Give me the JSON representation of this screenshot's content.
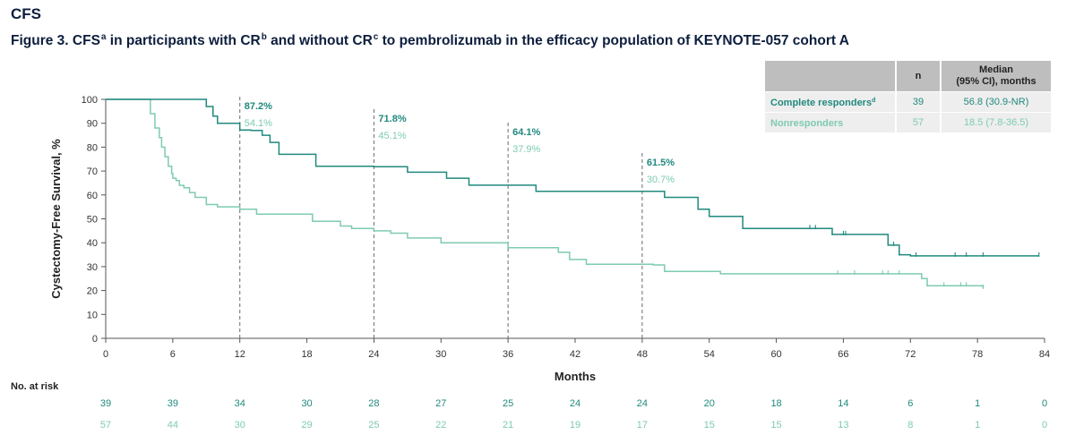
{
  "section_title": "CFS",
  "figure_title": {
    "p1": "Figure 3. CFS",
    "s1": "a",
    "p2": " in participants with CR",
    "s2": "b",
    "p3": " and without CR",
    "s3": "c",
    "p4": " to pembrolizumab in the efficacy population of KEYNOTE-057 cohort A"
  },
  "table": {
    "header_n": "n",
    "header_median_l1": "Median",
    "header_median_l2": "(95% CI), months",
    "rows": [
      {
        "label": "Complete responders",
        "sup": "d",
        "n": "39",
        "median": "56.8 (30.9-NR)",
        "color": "#21897e"
      },
      {
        "label": "Nonresponders",
        "sup": "",
        "n": "57",
        "median": "18.5 (7.8-36.5)",
        "color": "#7ecbb1"
      }
    ]
  },
  "colors": {
    "cr": "#21897e",
    "nr": "#7ecbb1",
    "axis": "#555555",
    "ref": "#777777"
  },
  "chart_data": {
    "type": "line",
    "subtype": "kaplan-meier step",
    "xlabel": "Months",
    "ylabel": "Cystectomy-Free Survival, %",
    "xlim": [
      0,
      84
    ],
    "ylim": [
      0,
      100
    ],
    "xticks": [
      "0",
      "6",
      "12",
      "18",
      "24",
      "30",
      "36",
      "42",
      "48",
      "54",
      "60",
      "66",
      "72",
      "78",
      "84"
    ],
    "yticks": [
      "0",
      "10",
      "20",
      "30",
      "40",
      "50",
      "60",
      "70",
      "80",
      "90",
      "100"
    ],
    "grid": false,
    "series": [
      {
        "name": "Complete responders",
        "color": "#21897e",
        "x": [
          0,
          9,
          9.6,
          10,
          12,
          13,
          14,
          14.7,
          15.5,
          18.8,
          24,
          27,
          30.5,
          32.5,
          38.5,
          50,
          53,
          54,
          57,
          64,
          65,
          66,
          68,
          70,
          71,
          72,
          76,
          83.5
        ],
        "y": [
          100,
          97,
          93,
          90,
          87.2,
          87,
          85,
          82,
          77,
          72,
          71.8,
          69.5,
          67,
          64.1,
          61.5,
          59,
          54,
          51,
          46,
          46,
          43.5,
          43.5,
          43.5,
          39,
          35,
          34.5,
          34.5,
          34.5
        ],
        "censor_x": [
          63,
          63.5,
          65,
          66,
          66.2,
          70.5,
          71,
          72.5,
          76,
          77,
          78.5,
          83.5
        ]
      },
      {
        "name": "Nonresponders",
        "color": "#7ecbb1",
        "x": [
          0,
          4,
          4.4,
          4.8,
          5,
          5.3,
          5.6,
          5.9,
          6,
          6.3,
          6.6,
          7,
          7.5,
          8,
          9,
          10,
          12,
          13.5,
          18.5,
          21,
          22,
          24,
          25.5,
          27,
          30,
          36,
          40.5,
          41.5,
          43,
          49,
          50,
          55,
          56,
          66,
          73,
          73.5,
          78.5
        ],
        "y": [
          100,
          94,
          88,
          84,
          80,
          76,
          72,
          69,
          67,
          66,
          64,
          63,
          61,
          59,
          56,
          55,
          54,
          52,
          49,
          47,
          46,
          45,
          44,
          42,
          40,
          37.9,
          36,
          33,
          31,
          30.7,
          28,
          27,
          27,
          27,
          25,
          22,
          21
        ],
        "censor_x": [
          65.5,
          67,
          69.5,
          70,
          71,
          73.5,
          75,
          76.5,
          77,
          78.5
        ]
      }
    ],
    "annotations": [
      {
        "x": 12,
        "cr_label": "87.2%",
        "nr_label": "54.1%"
      },
      {
        "x": 24,
        "cr_label": "71.8%",
        "nr_label": "45.1%"
      },
      {
        "x": 36,
        "cr_label": "64.1%",
        "nr_label": "37.9%"
      },
      {
        "x": 48,
        "cr_label": "61.5%",
        "nr_label": "30.7%"
      }
    ],
    "at_risk": {
      "label": "No. at risk",
      "times": [
        0,
        6,
        12,
        18,
        24,
        30,
        36,
        42,
        48,
        54,
        60,
        66,
        72,
        78,
        84
      ],
      "rows": [
        {
          "name": "Complete responders",
          "color": "#21897e",
          "values": [
            "39",
            "39",
            "34",
            "30",
            "28",
            "27",
            "25",
            "24",
            "24",
            "20",
            "18",
            "14",
            "6",
            "1",
            "0"
          ]
        },
        {
          "name": "Nonresponders",
          "color": "#7ecbb1",
          "values": [
            "57",
            "44",
            "30",
            "29",
            "25",
            "22",
            "21",
            "19",
            "17",
            "15",
            "15",
            "13",
            "8",
            "1",
            "0"
          ]
        }
      ]
    }
  }
}
